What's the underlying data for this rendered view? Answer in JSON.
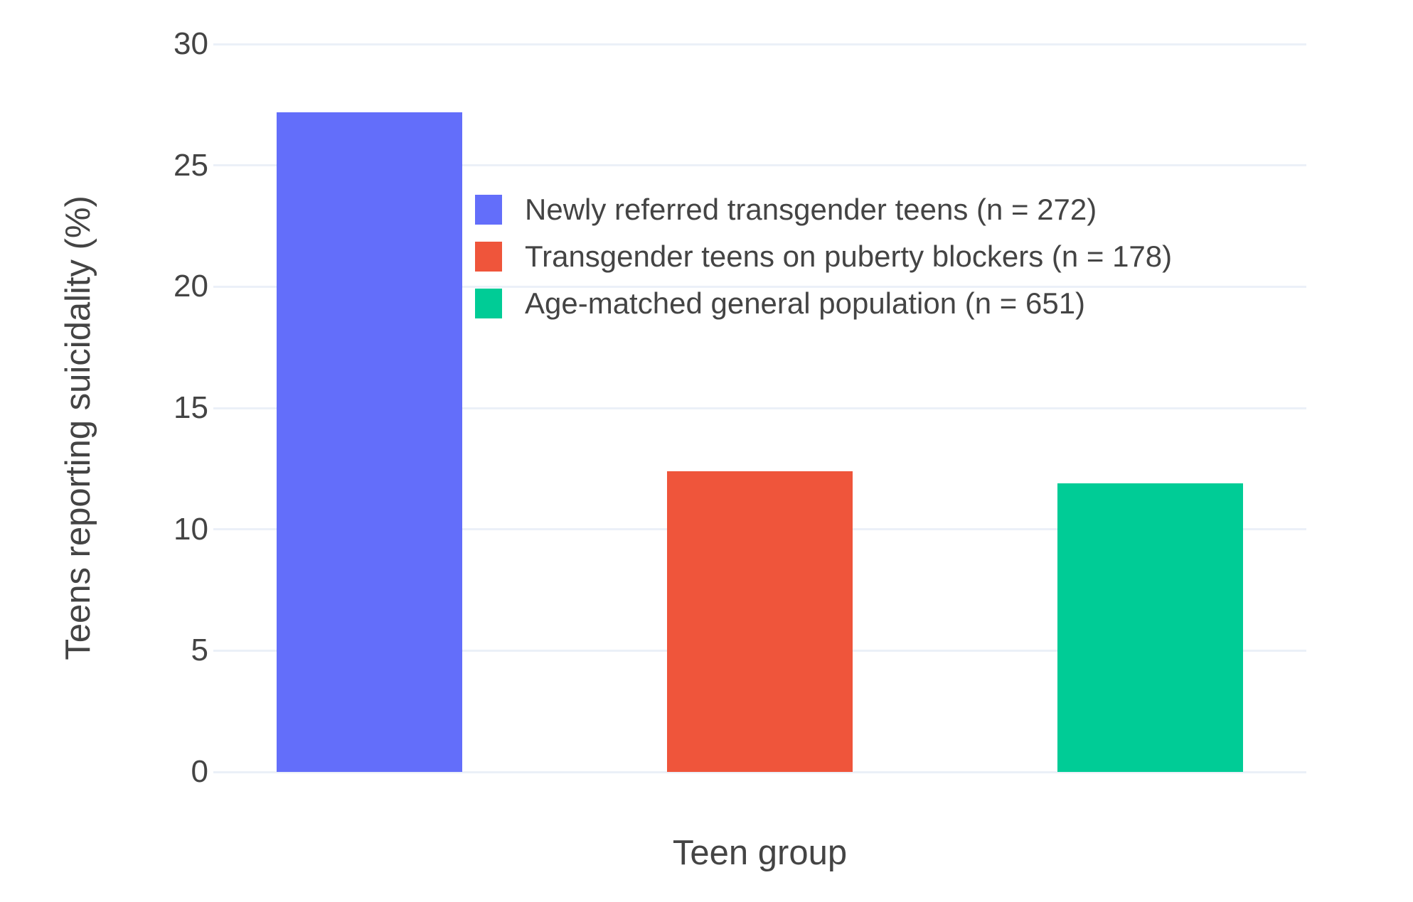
{
  "chart_data": {
    "type": "bar",
    "title": "",
    "xlabel": "Teen group",
    "ylabel": "Teens reporting suicidality (%)",
    "ylim": [
      0,
      30
    ],
    "yticks": [
      0,
      5,
      10,
      15,
      20,
      25,
      30
    ],
    "grid": true,
    "legend_position": "inside top-left of plot area",
    "background_color": "#ffffff",
    "gridline_color": "#EBF0F8",
    "text_color": "#444444",
    "categories": [
      "Newly referred transgender teens (n = 272)",
      "Transgender teens on puberty blockers (n = 178)",
      "Age-matched general population (n = 651)"
    ],
    "bars": [
      {
        "label": "Newly referred transgender teens (n = 272)",
        "value": 27.2,
        "color": "#636EFA"
      },
      {
        "label": "Transgender teens on puberty blockers (n = 178)",
        "value": 12.4,
        "color": "#EF553B"
      },
      {
        "label": "Age-matched general population (n = 651)",
        "value": 11.9,
        "color": "#00CC96"
      }
    ]
  }
}
